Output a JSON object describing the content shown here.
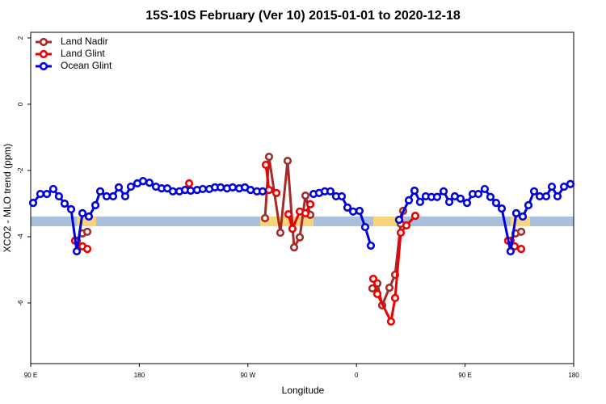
{
  "chart_data": {
    "type": "line",
    "title": "15S-10S February (Ver 10)   2015-01-01 to 2020-12-18",
    "x_label": "Longitude",
    "y_label": "XCO2 - MLO trend (ppm)",
    "xlim": [
      90,
      540
    ],
    "xticks": [
      {
        "value": 90,
        "label": "90 E"
      },
      {
        "value": 180,
        "label": "180"
      },
      {
        "value": 270,
        "label": "90 W"
      },
      {
        "value": 360,
        "label": "0"
      },
      {
        "value": 450,
        "label": "90 E"
      },
      {
        "value": 540,
        "label": "180"
      }
    ],
    "ylim": [
      -7.83,
      2.17
    ],
    "yticks": [
      2,
      0,
      -2,
      -4,
      -6
    ],
    "legend": "top-left",
    "series": [
      {
        "name": "Land Nadir",
        "color": "#a52a2a",
        "x": [
          128.2,
          132.9,
          136.9,
          null,
          284.2,
          287.5,
          296.9,
          302.9,
          308.3,
          313.0,
          317.7,
          321.7,
          null,
          373.2,
          377.3,
          381.3,
          387.3,
          392.0,
          396.7,
          398.7,
          null,
          487.7,
          491.8,
          496.5
        ],
        "values": [
          -4.12,
          -3.9,
          -3.85,
          null,
          -3.44,
          -1.59,
          -3.88,
          -1.71,
          -4.32,
          -4.02,
          -2.76,
          -3.34,
          null,
          -5.56,
          -5.41,
          -6.07,
          -5.54,
          -5.15,
          -3.61,
          -3.22,
          null,
          -4.12,
          -3.9,
          -3.85
        ]
      },
      {
        "name": "Land Glint",
        "color": "#ee0000",
        "x": [
          126.8,
          132.9,
          136.9,
          null,
          221.3,
          null,
          284.9,
          287.5,
          293.6,
          null,
          303.6,
          306.9,
          313.0,
          317.7,
          321.7,
          null,
          373.9,
          377.3,
          388.6,
          392.0,
          396.7,
          401.4,
          408.7,
          null,
          485.7,
          491.1,
          496.5
        ],
        "values": [
          -4.12,
          -4.29,
          -4.37,
          null,
          -2.39,
          null,
          -1.83,
          -2.59,
          -2.68,
          null,
          -3.32,
          -3.76,
          -3.24,
          -3.29,
          -3.02,
          null,
          -5.27,
          -5.73,
          -6.56,
          -5.85,
          -3.88,
          -3.66,
          -3.37,
          null,
          -4.12,
          -4.29,
          -4.37
        ]
      },
      {
        "name": "Ocean Glint",
        "color": "#0000dd",
        "x": [
          92.0,
          98.0,
          103.4,
          108.7,
          113.4,
          118.1,
          123.5,
          128.2,
          132.9,
          138.2,
          143.6,
          147.6,
          152.9,
          158.3,
          163.0,
          168.3,
          173.0,
          178.4,
          183.1,
          188.4,
          193.8,
          198.5,
          203.2,
          207.8,
          213.2,
          217.9,
          222.6,
          227.9,
          232.6,
          238.0,
          242.7,
          247.4,
          252.7,
          257.4,
          262.8,
          267.5,
          272.2,
          277.5,
          282.2,
          null,
          324.4,
          329.0,
          333.7,
          338.4,
          343.1,
          347.8,
          352.5,
          357.2,
          362.5,
          367.2,
          371.9,
          null,
          395.3,
          403.4,
          408.1,
          412.7,
          417.4,
          422.1,
          426.8,
          432.2,
          436.9,
          441.5,
          446.2,
          451.6,
          456.3,
          461.0,
          466.3,
          471.0,
          475.7,
          480.4,
          487.7,
          492.4,
          497.8,
          502.5,
          507.2,
          511.9,
          517.2,
          521.9,
          526.6,
          532.0,
          537.3
        ],
        "values": [
          -2.98,
          -2.71,
          -2.71,
          -2.56,
          -2.78,
          -3.0,
          -3.17,
          -4.44,
          -3.29,
          -3.39,
          -3.05,
          -2.63,
          -2.78,
          -2.78,
          -2.51,
          -2.78,
          -2.49,
          -2.39,
          -2.32,
          -2.37,
          -2.49,
          -2.54,
          -2.54,
          -2.63,
          -2.63,
          -2.59,
          -2.61,
          -2.59,
          -2.56,
          -2.56,
          -2.51,
          -2.51,
          -2.54,
          -2.51,
          -2.54,
          -2.51,
          -2.59,
          -2.63,
          -2.63,
          null,
          -2.71,
          -2.68,
          -2.63,
          -2.63,
          -2.78,
          -2.78,
          -3.12,
          -3.24,
          -3.22,
          -3.71,
          -4.27,
          null,
          -3.49,
          -2.9,
          -2.61,
          -2.95,
          -2.78,
          -2.8,
          -2.8,
          -2.63,
          -2.95,
          -2.78,
          -2.85,
          -2.98,
          -2.71,
          -2.71,
          -2.56,
          -2.8,
          -2.98,
          -3.15,
          -4.44,
          -3.29,
          -3.39,
          -3.05,
          -2.63,
          -2.78,
          -2.78,
          -2.49,
          -2.78,
          -2.49,
          -2.41
        ]
      }
    ]
  }
}
